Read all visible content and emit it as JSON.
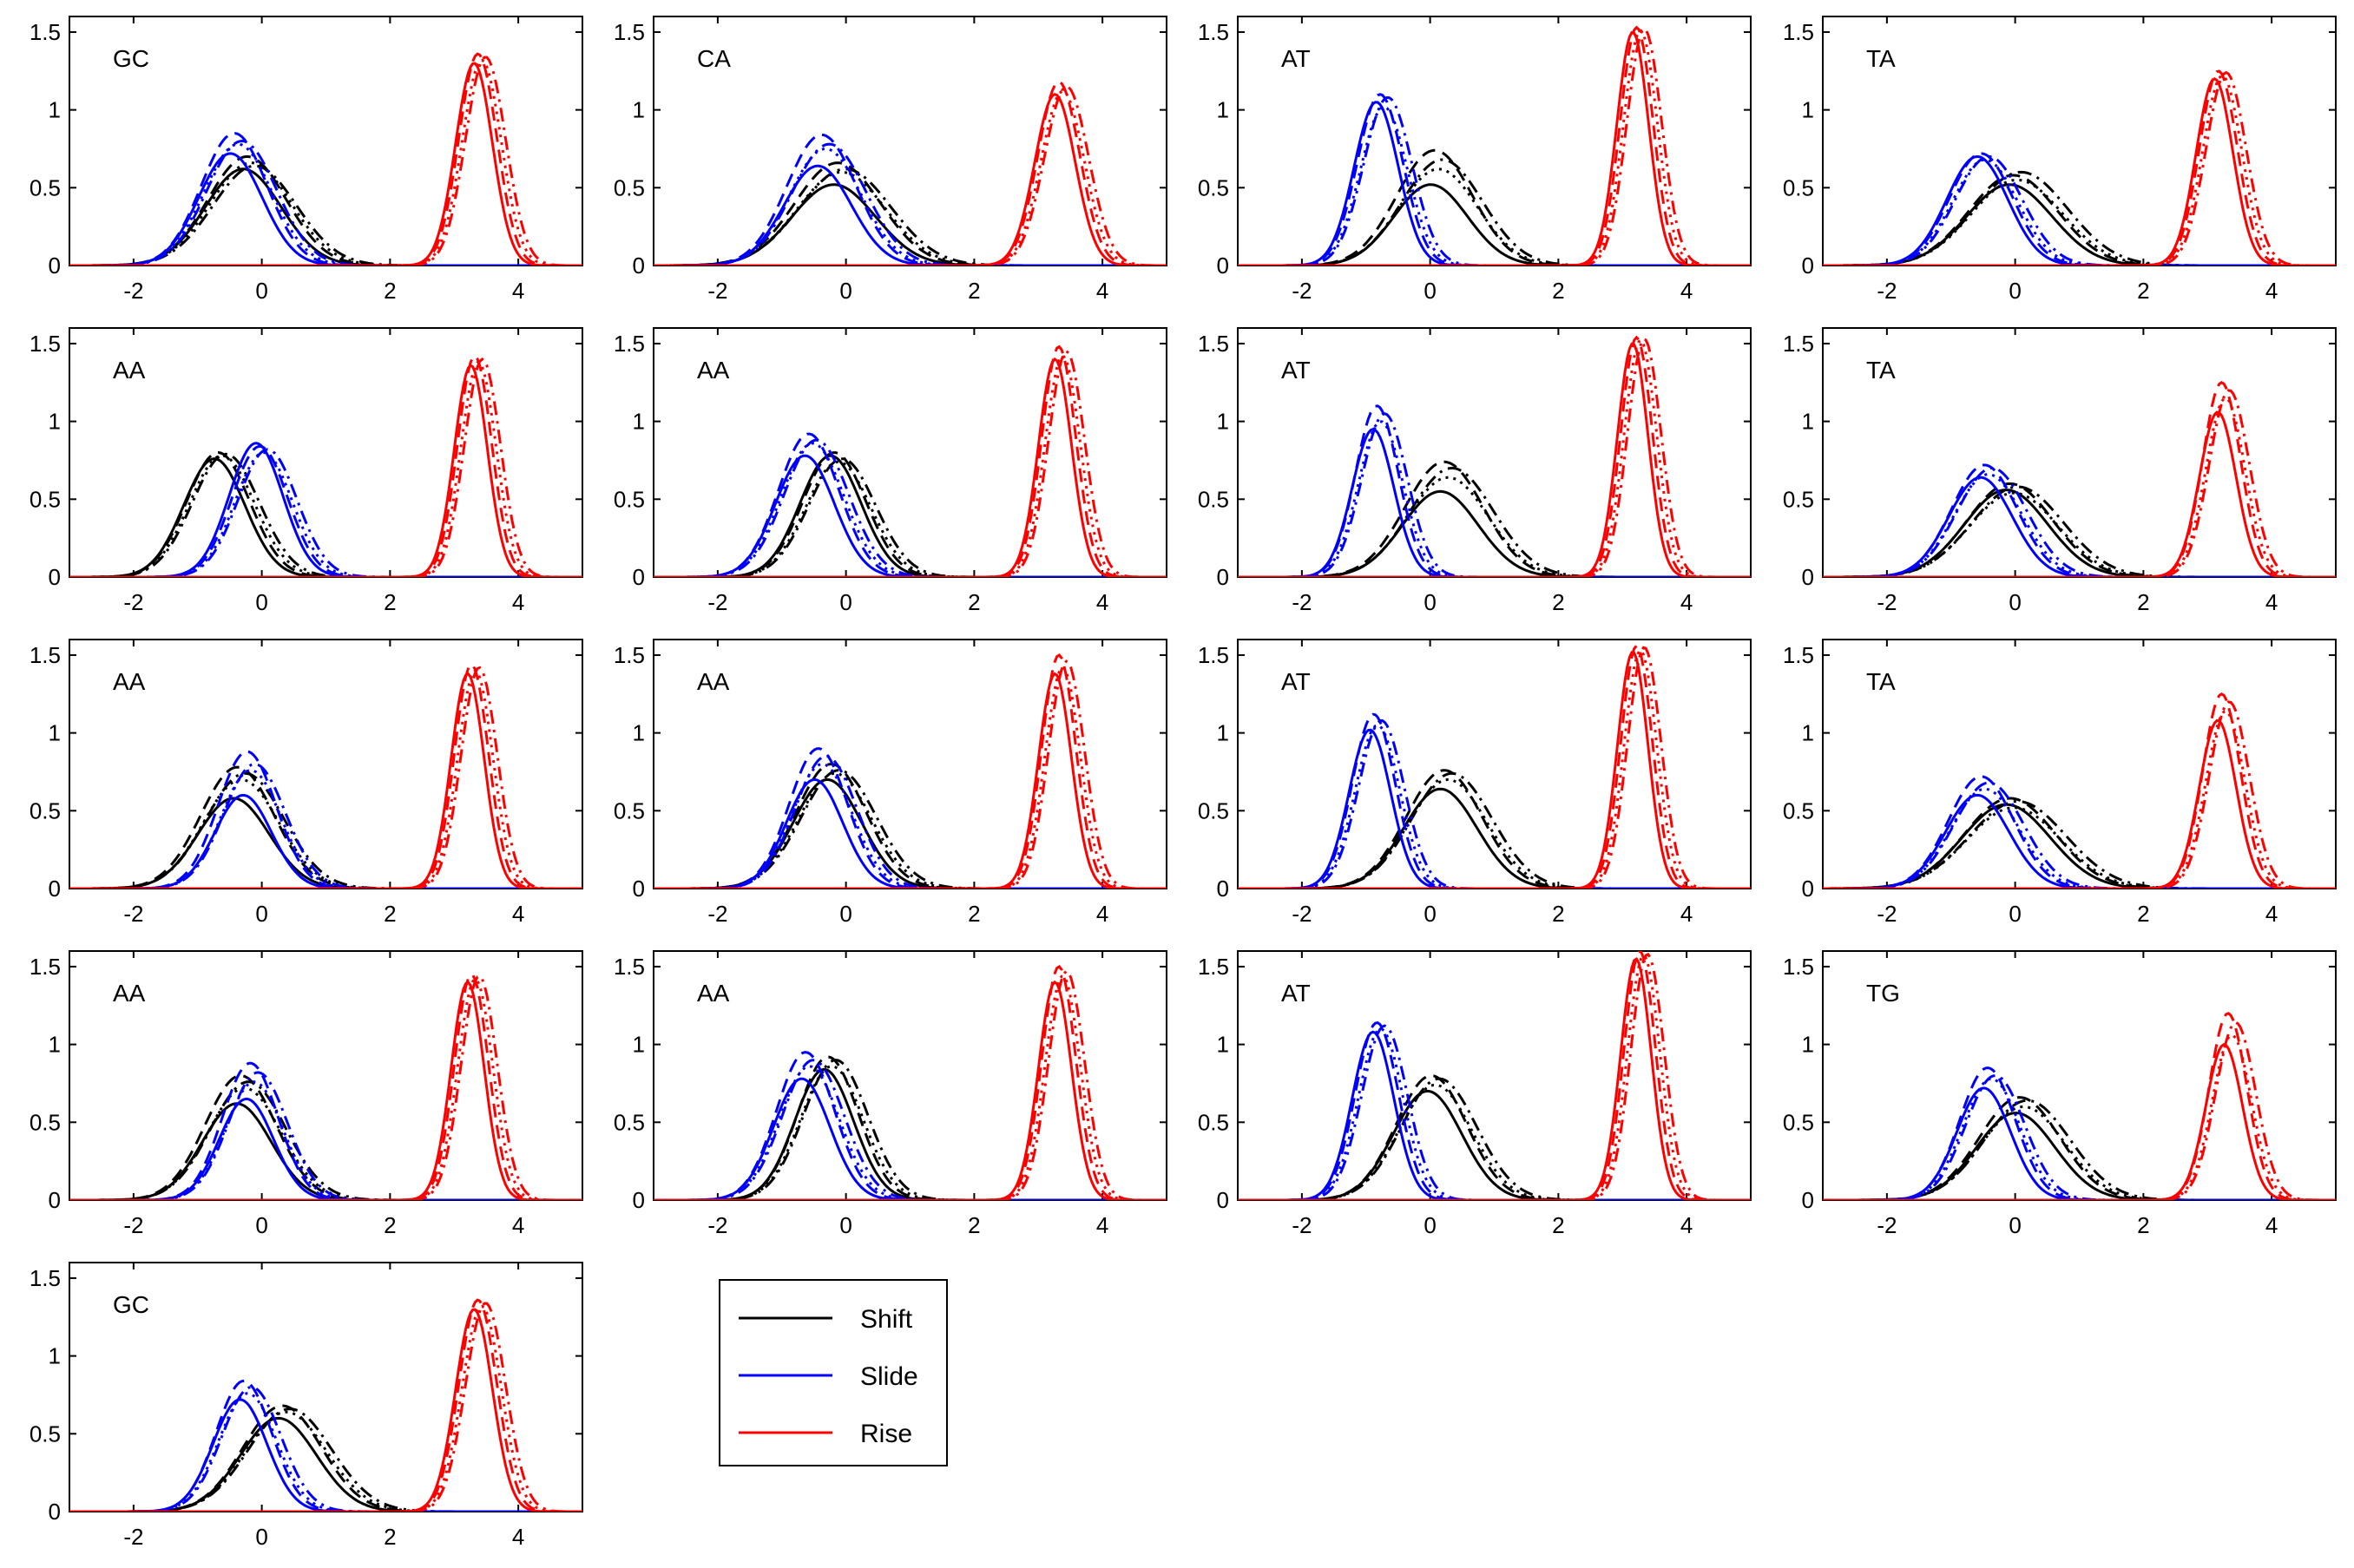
{
  "chart_data": {
    "type": "line",
    "layout": "small-multiples-5x4",
    "x_range": [
      -3,
      5
    ],
    "y_range": [
      0,
      1.6
    ],
    "x_ticks": [
      -2,
      0,
      2,
      4
    ],
    "y_ticks": [
      0,
      0.5,
      1,
      1.5
    ],
    "x_tick_labels": [
      "-2",
      "0",
      "2",
      "4"
    ],
    "y_tick_labels": [
      "0",
      "0.5",
      "1",
      "1.5"
    ],
    "grid": false,
    "legend": {
      "placement": "bottom-center",
      "entries": [
        {
          "name": "Shift",
          "color": "#000000"
        },
        {
          "name": "Slide",
          "color": "#0000ff"
        },
        {
          "name": "Rise",
          "color": "#ff0000"
        }
      ]
    },
    "line_styles": [
      "solid",
      "dashed",
      "dotted",
      "dash-dot"
    ],
    "panels": [
      {
        "label": "GC",
        "shift": {
          "mean": -0.2,
          "sd": 0.62,
          "peaks": [
            0.62,
            0.7,
            0.66,
            0.64
          ]
        },
        "slide": {
          "mean": -0.4,
          "sd": 0.52,
          "peaks": [
            0.72,
            0.85,
            0.78,
            0.8
          ]
        },
        "rise": {
          "mean": 3.4,
          "sd": 0.3,
          "peaks": [
            1.3,
            1.36,
            1.32,
            1.34
          ]
        }
      },
      {
        "label": "CA",
        "shift": {
          "mean": -0.1,
          "sd": 0.68,
          "peaks": [
            0.52,
            0.66,
            0.6,
            0.62
          ]
        },
        "slide": {
          "mean": -0.35,
          "sd": 0.55,
          "peaks": [
            0.64,
            0.84,
            0.75,
            0.78
          ]
        },
        "rise": {
          "mean": 3.35,
          "sd": 0.33,
          "peaks": [
            1.1,
            1.18,
            1.12,
            1.15
          ]
        }
      },
      {
        "label": "AT",
        "shift": {
          "mean": 0.1,
          "sd": 0.6,
          "peaks": [
            0.52,
            0.74,
            0.62,
            0.68
          ]
        },
        "slide": {
          "mean": -0.75,
          "sd": 0.36,
          "peaks": [
            1.05,
            1.1,
            1.02,
            1.08
          ]
        },
        "rise": {
          "mean": 3.25,
          "sd": 0.26,
          "peaks": [
            1.5,
            1.53,
            1.51,
            1.52
          ]
        }
      },
      {
        "label": "TA",
        "shift": {
          "mean": 0.0,
          "sd": 0.7,
          "peaks": [
            0.52,
            0.58,
            0.55,
            0.6
          ]
        },
        "slide": {
          "mean": -0.5,
          "sd": 0.5,
          "peaks": [
            0.7,
            0.72,
            0.68,
            0.7
          ]
        },
        "rise": {
          "mean": 3.2,
          "sd": 0.3,
          "peaks": [
            1.2,
            1.25,
            1.22,
            1.24
          ]
        }
      },
      {
        "label": "AA",
        "shift": {
          "mean": -0.65,
          "sd": 0.5,
          "peaks": [
            0.76,
            0.8,
            0.78,
            0.79
          ]
        },
        "slide": {
          "mean": 0.0,
          "sd": 0.44,
          "peaks": [
            0.86,
            0.84,
            0.8,
            0.82
          ]
        },
        "rise": {
          "mean": 3.35,
          "sd": 0.27,
          "peaks": [
            1.36,
            1.42,
            1.38,
            1.4
          ]
        }
      },
      {
        "label": "AA",
        "shift": {
          "mean": -0.15,
          "sd": 0.5,
          "peaks": [
            0.78,
            0.8,
            0.74,
            0.76
          ]
        },
        "slide": {
          "mean": -0.55,
          "sd": 0.48,
          "peaks": [
            0.78,
            0.92,
            0.86,
            0.88
          ]
        },
        "rise": {
          "mean": 3.35,
          "sd": 0.27,
          "peaks": [
            1.4,
            1.48,
            1.42,
            1.45
          ]
        }
      },
      {
        "label": "AT",
        "shift": {
          "mean": 0.25,
          "sd": 0.62,
          "peaks": [
            0.55,
            0.74,
            0.64,
            0.7
          ]
        },
        "slide": {
          "mean": -0.8,
          "sd": 0.34,
          "peaks": [
            0.95,
            1.1,
            1.0,
            1.05
          ]
        },
        "rise": {
          "mean": 3.25,
          "sd": 0.25,
          "peaks": [
            1.5,
            1.54,
            1.52,
            1.53
          ]
        }
      },
      {
        "label": "TA",
        "shift": {
          "mean": -0.05,
          "sd": 0.68,
          "peaks": [
            0.56,
            0.6,
            0.54,
            0.58
          ]
        },
        "slide": {
          "mean": -0.45,
          "sd": 0.52,
          "peaks": [
            0.64,
            0.72,
            0.66,
            0.7
          ]
        },
        "rise": {
          "mean": 3.25,
          "sd": 0.3,
          "peaks": [
            1.06,
            1.25,
            1.15,
            1.2
          ]
        }
      },
      {
        "label": "AA",
        "shift": {
          "mean": -0.35,
          "sd": 0.58,
          "peaks": [
            0.58,
            0.78,
            0.7,
            0.74
          ]
        },
        "slide": {
          "mean": -0.2,
          "sd": 0.46,
          "peaks": [
            0.6,
            0.88,
            0.76,
            0.8
          ]
        },
        "rise": {
          "mean": 3.3,
          "sd": 0.27,
          "peaks": [
            1.38,
            1.44,
            1.4,
            1.42
          ]
        }
      },
      {
        "label": "AA",
        "shift": {
          "mean": -0.2,
          "sd": 0.56,
          "peaks": [
            0.7,
            0.8,
            0.74,
            0.76
          ]
        },
        "slide": {
          "mean": -0.4,
          "sd": 0.46,
          "peaks": [
            0.7,
            0.9,
            0.8,
            0.85
          ]
        },
        "rise": {
          "mean": 3.35,
          "sd": 0.27,
          "peaks": [
            1.38,
            1.5,
            1.42,
            1.46
          ]
        }
      },
      {
        "label": "AT",
        "shift": {
          "mean": 0.25,
          "sd": 0.6,
          "peaks": [
            0.64,
            0.76,
            0.7,
            0.74
          ]
        },
        "slide": {
          "mean": -0.85,
          "sd": 0.34,
          "peaks": [
            1.02,
            1.12,
            1.05,
            1.08
          ]
        },
        "rise": {
          "mean": 3.25,
          "sd": 0.25,
          "peaks": [
            1.52,
            1.56,
            1.53,
            1.55
          ]
        }
      },
      {
        "label": "TA",
        "shift": {
          "mean": -0.05,
          "sd": 0.72,
          "peaks": [
            0.54,
            0.58,
            0.52,
            0.56
          ]
        },
        "slide": {
          "mean": -0.5,
          "sd": 0.52,
          "peaks": [
            0.6,
            0.72,
            0.64,
            0.68
          ]
        },
        "rise": {
          "mean": 3.25,
          "sd": 0.3,
          "peaks": [
            1.08,
            1.25,
            1.14,
            1.2
          ]
        }
      },
      {
        "label": "AA",
        "shift": {
          "mean": -0.3,
          "sd": 0.56,
          "peaks": [
            0.62,
            0.8,
            0.72,
            0.76
          ]
        },
        "slide": {
          "mean": -0.15,
          "sd": 0.44,
          "peaks": [
            0.65,
            0.88,
            0.76,
            0.82
          ]
        },
        "rise": {
          "mean": 3.3,
          "sd": 0.27,
          "peaks": [
            1.4,
            1.45,
            1.42,
            1.44
          ]
        }
      },
      {
        "label": "AA",
        "shift": {
          "mean": -0.25,
          "sd": 0.48,
          "peaks": [
            0.84,
            0.92,
            0.86,
            0.9
          ]
        },
        "slide": {
          "mean": -0.6,
          "sd": 0.46,
          "peaks": [
            0.78,
            0.95,
            0.86,
            0.9
          ]
        },
        "rise": {
          "mean": 3.35,
          "sd": 0.27,
          "peaks": [
            1.4,
            1.5,
            1.44,
            1.47
          ]
        }
      },
      {
        "label": "AT",
        "shift": {
          "mean": 0.05,
          "sd": 0.56,
          "peaks": [
            0.7,
            0.8,
            0.74,
            0.78
          ]
        },
        "slide": {
          "mean": -0.8,
          "sd": 0.34,
          "peaks": [
            1.08,
            1.14,
            1.1,
            1.12
          ]
        },
        "rise": {
          "mean": 3.3,
          "sd": 0.25,
          "peaks": [
            1.55,
            1.6,
            1.57,
            1.58
          ]
        }
      },
      {
        "label": "TG",
        "shift": {
          "mean": 0.1,
          "sd": 0.64,
          "peaks": [
            0.56,
            0.66,
            0.6,
            0.64
          ]
        },
        "slide": {
          "mean": -0.4,
          "sd": 0.44,
          "peaks": [
            0.72,
            0.85,
            0.78,
            0.8
          ]
        },
        "rise": {
          "mean": 3.35,
          "sd": 0.3,
          "peaks": [
            1.0,
            1.2,
            1.06,
            1.14
          ]
        }
      },
      {
        "label": "GC",
        "shift": {
          "mean": 0.35,
          "sd": 0.62,
          "peaks": [
            0.6,
            0.68,
            0.64,
            0.66
          ]
        },
        "slide": {
          "mean": -0.25,
          "sd": 0.44,
          "peaks": [
            0.72,
            0.84,
            0.76,
            0.8
          ]
        },
        "rise": {
          "mean": 3.4,
          "sd": 0.3,
          "peaks": [
            1.3,
            1.36,
            1.32,
            1.34
          ]
        }
      }
    ]
  }
}
